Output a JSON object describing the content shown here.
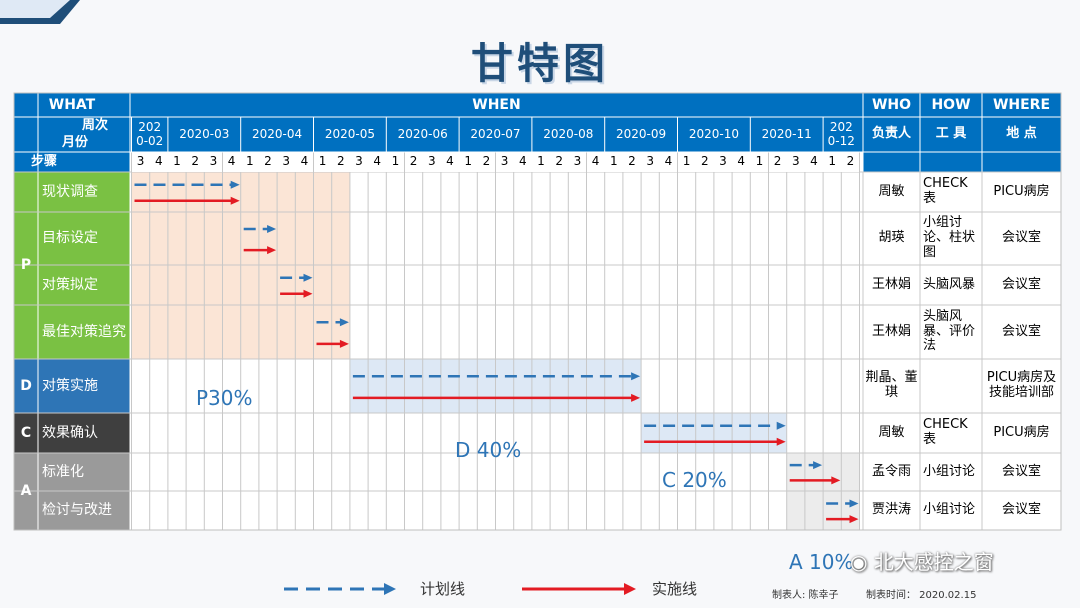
{
  "title": "甘特图",
  "headers": {
    "what": "WHAT",
    "when": "WHEN",
    "who": "WHO",
    "how": "HOW",
    "where": "WHERE",
    "week_label": "周次",
    "month_label": "月份",
    "step_label": "步骤",
    "who_sub": "负责人",
    "how_sub": "工 具",
    "where_sub": "地 点"
  },
  "months": [
    {
      "label": "2020-02",
      "weeks": [
        "3",
        "4"
      ]
    },
    {
      "label": "2020-03",
      "weeks": [
        "1",
        "2",
        "3",
        "4"
      ]
    },
    {
      "label": "2020-04",
      "weeks": [
        "1",
        "2",
        "3",
        "4"
      ]
    },
    {
      "label": "2020-05",
      "weeks": [
        "1",
        "2",
        "3",
        "4"
      ]
    },
    {
      "label": "2020-06",
      "weeks": [
        "1",
        "2",
        "3",
        "4"
      ]
    },
    {
      "label": "2020-07",
      "weeks": [
        "1",
        "2",
        "3",
        "4"
      ]
    },
    {
      "label": "2020-08",
      "weeks": [
        "1",
        "2",
        "3",
        "4"
      ]
    },
    {
      "label": "2020-09",
      "weeks": [
        "1",
        "2",
        "3",
        "4"
      ]
    },
    {
      "label": "2020-10",
      "weeks": [
        "1",
        "2",
        "3",
        "4"
      ]
    },
    {
      "label": "2020-11",
      "weeks": [
        "1",
        "2",
        "3",
        "4"
      ]
    },
    {
      "label": "2020-12",
      "weeks": [
        "1",
        "2"
      ]
    }
  ],
  "phases": [
    {
      "code": "P",
      "color": "#7ac143"
    },
    {
      "code": "D",
      "color": "#2e75b6"
    },
    {
      "code": "C",
      "color": "#3f3f3f"
    },
    {
      "code": "A",
      "color": "#9a9a9a"
    }
  ],
  "tasks": [
    {
      "name": "现状调查",
      "phase": "P",
      "who": "周敏",
      "how": "CHECK表",
      "where": "PICU病房",
      "plan": [
        1,
        6
      ],
      "actual": [
        1,
        6
      ]
    },
    {
      "name": "目标设定",
      "phase": "P",
      "who": "胡瑛",
      "how": "小组讨论、柱状图",
      "where": "会议室",
      "plan": [
        7,
        8
      ],
      "actual": [
        7,
        8
      ]
    },
    {
      "name": "对策拟定",
      "phase": "P",
      "who": "王林娟",
      "how": "头脑风暴",
      "where": "会议室",
      "plan": [
        9,
        10
      ],
      "actual": [
        9,
        10
      ]
    },
    {
      "name": "最佳对策追究",
      "phase": "P",
      "who": "王林娟",
      "how": "头脑风暴、评价法",
      "where": "会议室",
      "plan": [
        11,
        12
      ],
      "actual": [
        11,
        12
      ]
    },
    {
      "name": "对策实施",
      "phase": "D",
      "who": "荆晶、董琪",
      "how": "",
      "where": "PICU病房及技能培训部",
      "plan": [
        13,
        28
      ],
      "actual": [
        13,
        28
      ]
    },
    {
      "name": "效果确认",
      "phase": "C",
      "who": "周敏",
      "how": "CHECK表",
      "where": "PICU病房",
      "plan": [
        29,
        36
      ],
      "actual": [
        29,
        36
      ]
    },
    {
      "name": "标准化",
      "phase": "A",
      "who": "孟令雨",
      "how": "小组讨论",
      "where": "会议室",
      "plan": [
        37,
        38
      ],
      "actual": [
        37,
        39
      ]
    },
    {
      "name": "检讨与改进",
      "phase": "A",
      "who": "贾洪涛",
      "how": "小组讨论",
      "where": "会议室",
      "plan": [
        39,
        40
      ],
      "actual": [
        39,
        40
      ]
    }
  ],
  "percent_labels": {
    "p": "P30%",
    "d": "D 40%",
    "c": "C 20%",
    "a": "A 10%"
  },
  "legend": {
    "plan": "计划线",
    "actual": "实施线"
  },
  "footer": {
    "maker": "制表人: 陈幸子",
    "time": "制表时间： 2020.02.15"
  },
  "watermark": "北大感控之窗",
  "colors": {
    "header_blue": "#0070c0",
    "plan": "#2e75b6",
    "actual": "#e31b23",
    "p_shade": "#fbe5d6",
    "bar_shade": "#dde8f5"
  }
}
